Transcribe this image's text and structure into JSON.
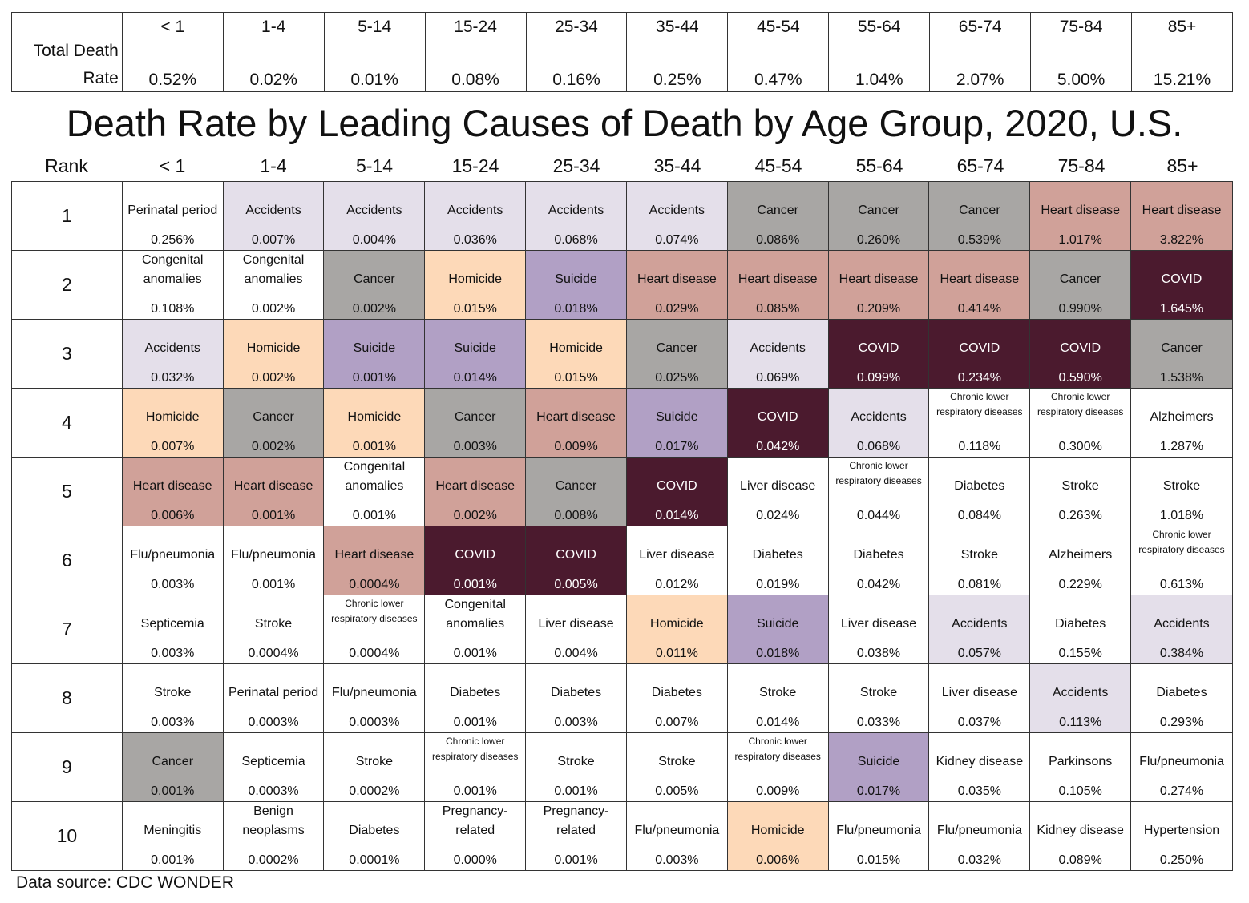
{
  "top_table": {
    "label_line1": "Total Death",
    "label_line2": "Rate",
    "ages": [
      "< 1",
      "1-4",
      "5-14",
      "15-24",
      "25-34",
      "35-44",
      "45-54",
      "55-64",
      "65-74",
      "75-84",
      "85+"
    ],
    "rates": [
      "0.52%",
      "0.02%",
      "0.01%",
      "0.08%",
      "0.16%",
      "0.25%",
      "0.47%",
      "1.04%",
      "2.07%",
      "5.00%",
      "15.21%"
    ]
  },
  "title": "Death Rate by Leading Causes of Death by Age Group, 2020, U.S.",
  "rank_label": "Rank",
  "source": "Data source: CDC WONDER",
  "colors": {
    "Accidents": "#e4dfea",
    "Cancer": "#a8a6a4",
    "Heart disease": "#d0a199",
    "COVID": "#4b1a2e",
    "Suicide": "#b1a0c5",
    "Homicide": "#fdd9b8"
  },
  "chart_data": {
    "type": "table",
    "title": "Death Rate by Leading Causes of Death by Age Group, 2020, U.S.",
    "columns": [
      "< 1",
      "1-4",
      "5-14",
      "15-24",
      "25-34",
      "35-44",
      "45-54",
      "55-64",
      "65-74",
      "75-84",
      "85+"
    ],
    "ranks": [
      "1",
      "2",
      "3",
      "4",
      "5",
      "6",
      "7",
      "8",
      "9",
      "10"
    ],
    "rows": [
      [
        [
          "Perinatal period",
          "0.256%"
        ],
        [
          "Accidents",
          "0.007%"
        ],
        [
          "Accidents",
          "0.004%"
        ],
        [
          "Accidents",
          "0.036%"
        ],
        [
          "Accidents",
          "0.068%"
        ],
        [
          "Accidents",
          "0.074%"
        ],
        [
          "Cancer",
          "0.086%"
        ],
        [
          "Cancer",
          "0.260%"
        ],
        [
          "Cancer",
          "0.539%"
        ],
        [
          "Heart disease",
          "1.017%"
        ],
        [
          "Heart disease",
          "3.822%"
        ]
      ],
      [
        [
          "Congenital anomalies",
          "0.108%"
        ],
        [
          "Congenital anomalies",
          "0.002%"
        ],
        [
          "Cancer",
          "0.002%"
        ],
        [
          "Homicide",
          "0.015%"
        ],
        [
          "Suicide",
          "0.018%"
        ],
        [
          "Heart disease",
          "0.029%"
        ],
        [
          "Heart disease",
          "0.085%"
        ],
        [
          "Heart disease",
          "0.209%"
        ],
        [
          "Heart disease",
          "0.414%"
        ],
        [
          "Cancer",
          "0.990%"
        ],
        [
          "COVID",
          "1.645%"
        ]
      ],
      [
        [
          "Accidents",
          "0.032%"
        ],
        [
          "Homicide",
          "0.002%"
        ],
        [
          "Suicide",
          "0.001%"
        ],
        [
          "Suicide",
          "0.014%"
        ],
        [
          "Homicide",
          "0.015%"
        ],
        [
          "Cancer",
          "0.025%"
        ],
        [
          "Accidents",
          "0.069%"
        ],
        [
          "COVID",
          "0.099%"
        ],
        [
          "COVID",
          "0.234%"
        ],
        [
          "COVID",
          "0.590%"
        ],
        [
          "Cancer",
          "1.538%"
        ]
      ],
      [
        [
          "Homicide",
          "0.007%"
        ],
        [
          "Cancer",
          "0.002%"
        ],
        [
          "Homicide",
          "0.001%"
        ],
        [
          "Cancer",
          "0.003%"
        ],
        [
          "Heart disease",
          "0.009%"
        ],
        [
          "Suicide",
          "0.017%"
        ],
        [
          "COVID",
          "0.042%"
        ],
        [
          "Accidents",
          "0.068%"
        ],
        [
          "Chronic lower respiratory diseases",
          "0.118%"
        ],
        [
          "Chronic lower respiratory diseases",
          "0.300%"
        ],
        [
          "Alzheimers",
          "1.287%"
        ]
      ],
      [
        [
          "Heart disease",
          "0.006%"
        ],
        [
          "Heart disease",
          "0.001%"
        ],
        [
          "Congenital anomalies",
          "0.001%"
        ],
        [
          "Heart disease",
          "0.002%"
        ],
        [
          "Cancer",
          "0.008%"
        ],
        [
          "COVID",
          "0.014%"
        ],
        [
          "Liver disease",
          "0.024%"
        ],
        [
          "Chronic lower respiratory diseases",
          "0.044%"
        ],
        [
          "Diabetes",
          "0.084%"
        ],
        [
          "Stroke",
          "0.263%"
        ],
        [
          "Stroke",
          "1.018%"
        ]
      ],
      [
        [
          "Flu/pneumonia",
          "0.003%"
        ],
        [
          "Flu/pneumonia",
          "0.001%"
        ],
        [
          "Heart disease",
          "0.0004%"
        ],
        [
          "COVID",
          "0.001%"
        ],
        [
          "COVID",
          "0.005%"
        ],
        [
          "Liver disease",
          "0.012%"
        ],
        [
          "Diabetes",
          "0.019%"
        ],
        [
          "Diabetes",
          "0.042%"
        ],
        [
          "Stroke",
          "0.081%"
        ],
        [
          "Alzheimers",
          "0.229%"
        ],
        [
          "Chronic lower respiratory diseases",
          "0.613%"
        ]
      ],
      [
        [
          "Septicemia",
          "0.003%"
        ],
        [
          "Stroke",
          "0.0004%"
        ],
        [
          "Chronic lower respiratory diseases",
          "0.0004%"
        ],
        [
          "Congenital anomalies",
          "0.001%"
        ],
        [
          "Liver disease",
          "0.004%"
        ],
        [
          "Homicide",
          "0.011%"
        ],
        [
          "Suicide",
          "0.018%"
        ],
        [
          "Liver disease",
          "0.038%"
        ],
        [
          "Accidents",
          "0.057%"
        ],
        [
          "Diabetes",
          "0.155%"
        ],
        [
          "Accidents",
          "0.384%"
        ]
      ],
      [
        [
          "Stroke",
          "0.003%"
        ],
        [
          "Perinatal period",
          "0.0003%"
        ],
        [
          "Flu/pneumonia",
          "0.0003%"
        ],
        [
          "Diabetes",
          "0.001%"
        ],
        [
          "Diabetes",
          "0.003%"
        ],
        [
          "Diabetes",
          "0.007%"
        ],
        [
          "Stroke",
          "0.014%"
        ],
        [
          "Stroke",
          "0.033%"
        ],
        [
          "Liver disease",
          "0.037%"
        ],
        [
          "Accidents",
          "0.113%"
        ],
        [
          "Diabetes",
          "0.293%"
        ]
      ],
      [
        [
          "Cancer",
          "0.001%"
        ],
        [
          "Septicemia",
          "0.0003%"
        ],
        [
          "Stroke",
          "0.0002%"
        ],
        [
          "Chronic lower respiratory diseases",
          "0.001%"
        ],
        [
          "Stroke",
          "0.001%"
        ],
        [
          "Stroke",
          "0.005%"
        ],
        [
          "Chronic lower respiratory diseases",
          "0.009%"
        ],
        [
          "Suicide",
          "0.017%"
        ],
        [
          "Kidney disease",
          "0.035%"
        ],
        [
          "Parkinsons",
          "0.105%"
        ],
        [
          "Flu/pneumonia",
          "0.274%"
        ]
      ],
      [
        [
          "Meningitis",
          "0.001%"
        ],
        [
          "Benign neoplasms",
          "0.0002%"
        ],
        [
          "Diabetes",
          "0.0001%"
        ],
        [
          "Pregnancy-related",
          "0.000%"
        ],
        [
          "Pregnancy-related",
          "0.001%"
        ],
        [
          "Flu/pneumonia",
          "0.003%"
        ],
        [
          "Homicide",
          "0.006%"
        ],
        [
          "Flu/pneumonia",
          "0.015%"
        ],
        [
          "Flu/pneumonia",
          "0.032%"
        ],
        [
          "Kidney disease",
          "0.089%"
        ],
        [
          "Hypertension",
          "0.250%"
        ]
      ]
    ]
  }
}
